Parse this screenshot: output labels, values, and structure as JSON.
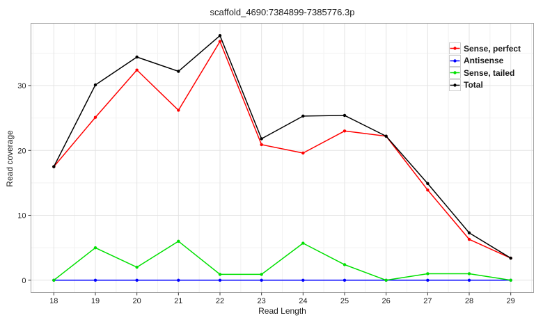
{
  "figure": {
    "title": "scaffold_4690:7384899-7385776.3p",
    "xlabel": "Read Length",
    "ylabel": "Read coverage"
  },
  "chart_data": {
    "type": "line",
    "title": "scaffold_4690:7384899-7385776.3p",
    "xlabel": "Read Length",
    "ylabel": "Read coverage",
    "x": [
      18,
      19,
      20,
      21,
      22,
      23,
      24,
      25,
      26,
      27,
      28,
      29
    ],
    "series": [
      {
        "name": "Sense, perfect",
        "color": "#ff0000",
        "values": [
          17.5,
          25.1,
          32.4,
          26.2,
          36.8,
          20.9,
          19.6,
          23.0,
          22.2,
          13.9,
          6.3,
          3.4
        ]
      },
      {
        "name": "Antisense",
        "color": "#0000ff",
        "values": [
          0,
          0,
          0,
          0,
          0,
          0,
          0,
          0,
          0,
          0,
          0,
          0
        ]
      },
      {
        "name": "Sense, tailed",
        "color": "#00e000",
        "values": [
          0,
          5.0,
          2.0,
          6.0,
          0.9,
          0.9,
          5.7,
          2.4,
          0,
          1.0,
          1.0,
          0
        ]
      },
      {
        "name": "Total",
        "color": "#000000",
        "values": [
          17.5,
          30.1,
          34.4,
          32.2,
          37.7,
          21.8,
          25.3,
          25.4,
          22.2,
          14.9,
          7.3,
          3.4
        ]
      }
    ],
    "x_ticks": [
      18,
      19,
      20,
      21,
      22,
      23,
      24,
      25,
      26,
      27,
      28,
      29
    ],
    "y_ticks": [
      0,
      10,
      20,
      30
    ],
    "y_minor_ticks": [
      5,
      15,
      25,
      35
    ],
    "xlim": [
      17.45,
      29.55
    ],
    "ylim": [
      -1.9,
      39.6
    ],
    "grid": "major-and-minor",
    "legend_position": "top-right-inside",
    "colors": {
      "grid_major": "#e3e3e3",
      "grid_minor": "#f2f2f2",
      "panel_border": "#a3a3a3",
      "tick_mark": "#333333",
      "tick_text": "#1a1a1a"
    }
  }
}
